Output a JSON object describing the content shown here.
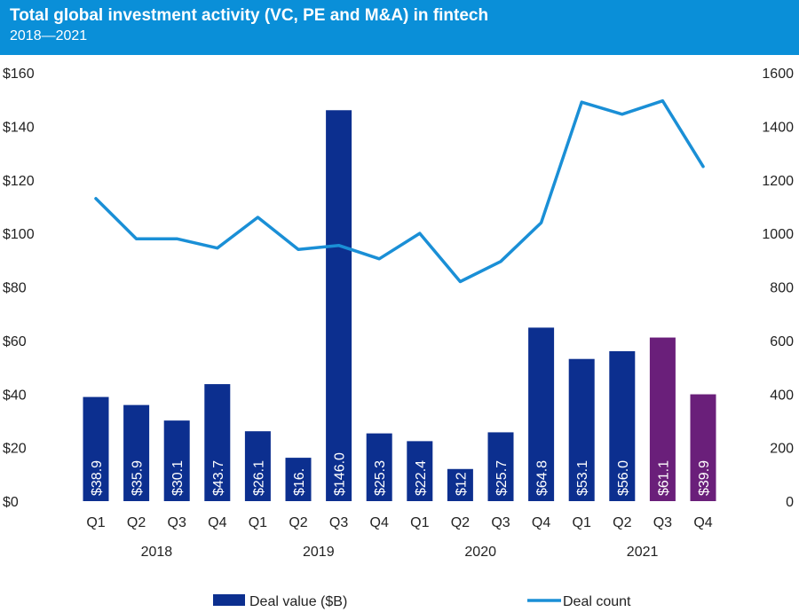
{
  "header": {
    "title": "Total global investment activity (VC, PE and M&A) in fintech",
    "subtitle": "2018—2021"
  },
  "colors": {
    "header_bg": "#0a8fd8",
    "bar_default": "#0c2f8f",
    "bar_highlight": "#6a1f7a",
    "line": "#1a8fd6"
  },
  "chart_data": {
    "type": "bar",
    "title": "Total global investment activity (VC, PE and M&A) in fintech",
    "subtitle": "2018—2021",
    "categories": [
      "Q1",
      "Q2",
      "Q3",
      "Q4",
      "Q1",
      "Q2",
      "Q3",
      "Q4",
      "Q1",
      "Q2",
      "Q3",
      "Q4",
      "Q1",
      "Q2",
      "Q3",
      "Q4"
    ],
    "groups": [
      {
        "label": "2018",
        "start": 0,
        "end": 3
      },
      {
        "label": "2019",
        "start": 4,
        "end": 7
      },
      {
        "label": "2020",
        "start": 8,
        "end": 11
      },
      {
        "label": "2021",
        "start": 12,
        "end": 15
      }
    ],
    "series": [
      {
        "name": "Deal value ($B)",
        "type": "bar",
        "axis": "left",
        "values": [
          38.9,
          35.9,
          30.1,
          43.7,
          26.1,
          16.2,
          146.0,
          25.3,
          22.4,
          12,
          25.7,
          64.8,
          53.1,
          56.0,
          61.1,
          39.9
        ],
        "labels": [
          "$38.9",
          "$35.9",
          "$30.1",
          "$43.7",
          "$26.1",
          "$16.",
          "$146.0",
          "$25.3",
          "$22.4",
          "$12",
          "$25.7",
          "$64.8",
          "$53.1",
          "$56.0",
          "$61.1",
          "$39.9"
        ],
        "highlight": [
          14,
          15
        ]
      },
      {
        "name": "Deal count",
        "type": "line",
        "axis": "right",
        "values": [
          1130,
          980,
          980,
          945,
          1060,
          940,
          955,
          905,
          1000,
          820,
          895,
          1040,
          1490,
          1445,
          1495,
          1250
        ]
      }
    ],
    "y_left": {
      "min": 0,
      "max": 160,
      "ticks": [
        "$0",
        "$20",
        "$40",
        "$60",
        "$80",
        "$100",
        "$120",
        "$140",
        "$160"
      ]
    },
    "y_right": {
      "min": 0,
      "max": 1600,
      "ticks": [
        "0",
        "200",
        "400",
        "600",
        "800",
        "1000",
        "1200",
        "1400",
        "1600"
      ]
    },
    "grid": false,
    "legend": "bottom"
  }
}
